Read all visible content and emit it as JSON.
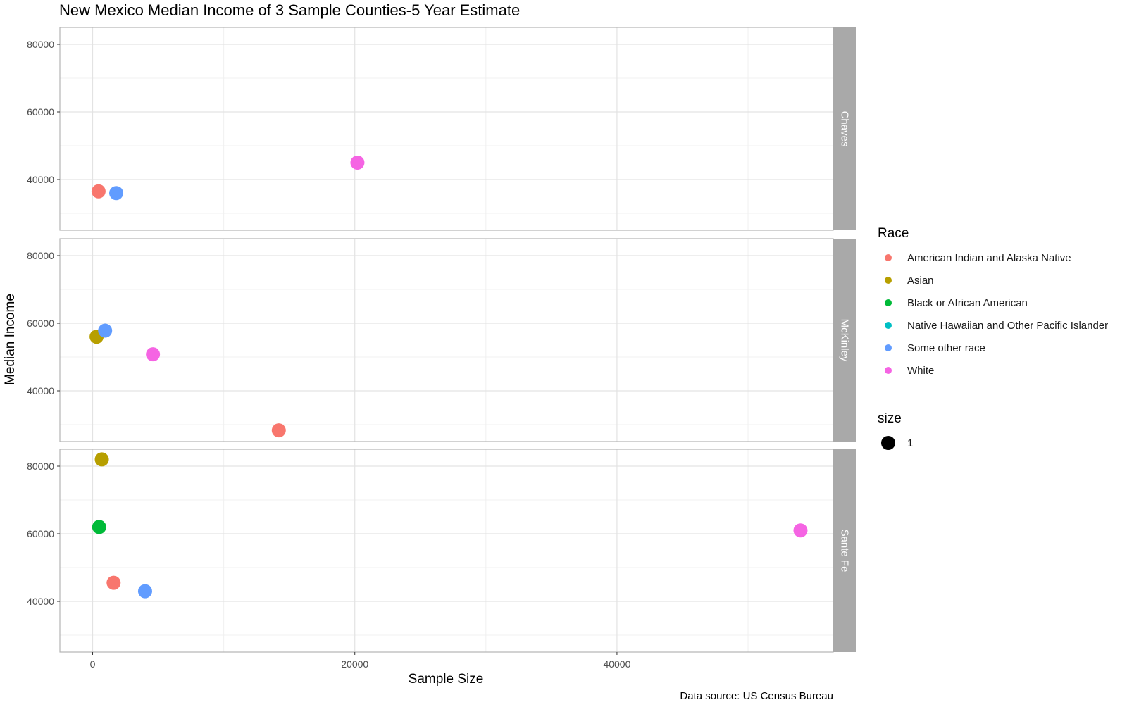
{
  "chart_data": {
    "type": "scatter",
    "title": "New Mexico Median Income of 3 Sample Counties-5 Year Estimate",
    "xlabel": "Sample Size",
    "ylabel": "Median Income",
    "caption": "Data source: US Census Bureau",
    "xlim": [
      -2500,
      56500
    ],
    "ylim": [
      25000,
      85000
    ],
    "x_ticks": [
      0,
      20000,
      40000
    ],
    "y_ticks": [
      40000,
      60000,
      80000
    ],
    "x_minor_ticks": [
      10000,
      30000,
      50000
    ],
    "y_minor_ticks": [
      30000,
      50000,
      70000
    ],
    "grid": true,
    "facets": [
      "Chaves",
      "McKinley",
      "Sante Fe"
    ],
    "legend": {
      "placement": "right",
      "color_title": "Race",
      "size_title": "size",
      "size_label": "1",
      "entries": [
        {
          "name": "American Indian and Alaska Native",
          "color": "#F8766D"
        },
        {
          "name": "Asian",
          "color": "#B79F00"
        },
        {
          "name": "Black or African American",
          "color": "#00BA38"
        },
        {
          "name": "Native Hawaiian and Other Pacific Islander",
          "color": "#00BFC4"
        },
        {
          "name": "Some other race",
          "color": "#619CFF"
        },
        {
          "name": "White",
          "color": "#F564E3"
        }
      ]
    },
    "points": [
      {
        "facet": "Chaves",
        "race": "American Indian and Alaska Native",
        "x": 450,
        "y": 36500
      },
      {
        "facet": "Chaves",
        "race": "Some other race",
        "x": 1800,
        "y": 36000
      },
      {
        "facet": "Chaves",
        "race": "White",
        "x": 20200,
        "y": 45000
      },
      {
        "facet": "McKinley",
        "race": "Asian",
        "x": 300,
        "y": 56000
      },
      {
        "facet": "McKinley",
        "race": "Some other race",
        "x": 950,
        "y": 57800
      },
      {
        "facet": "McKinley",
        "race": "White",
        "x": 4600,
        "y": 50800
      },
      {
        "facet": "McKinley",
        "race": "American Indian and Alaska Native",
        "x": 14200,
        "y": 28300
      },
      {
        "facet": "Sante Fe",
        "race": "Asian",
        "x": 700,
        "y": 82000
      },
      {
        "facet": "Sante Fe",
        "race": "Black or African American",
        "x": 500,
        "y": 62000
      },
      {
        "facet": "Sante Fe",
        "race": "American Indian and Alaska Native",
        "x": 1600,
        "y": 45500
      },
      {
        "facet": "Sante Fe",
        "race": "Some other race",
        "x": 4000,
        "y": 43000
      },
      {
        "facet": "Sante Fe",
        "race": "White",
        "x": 54000,
        "y": 61000
      }
    ]
  }
}
